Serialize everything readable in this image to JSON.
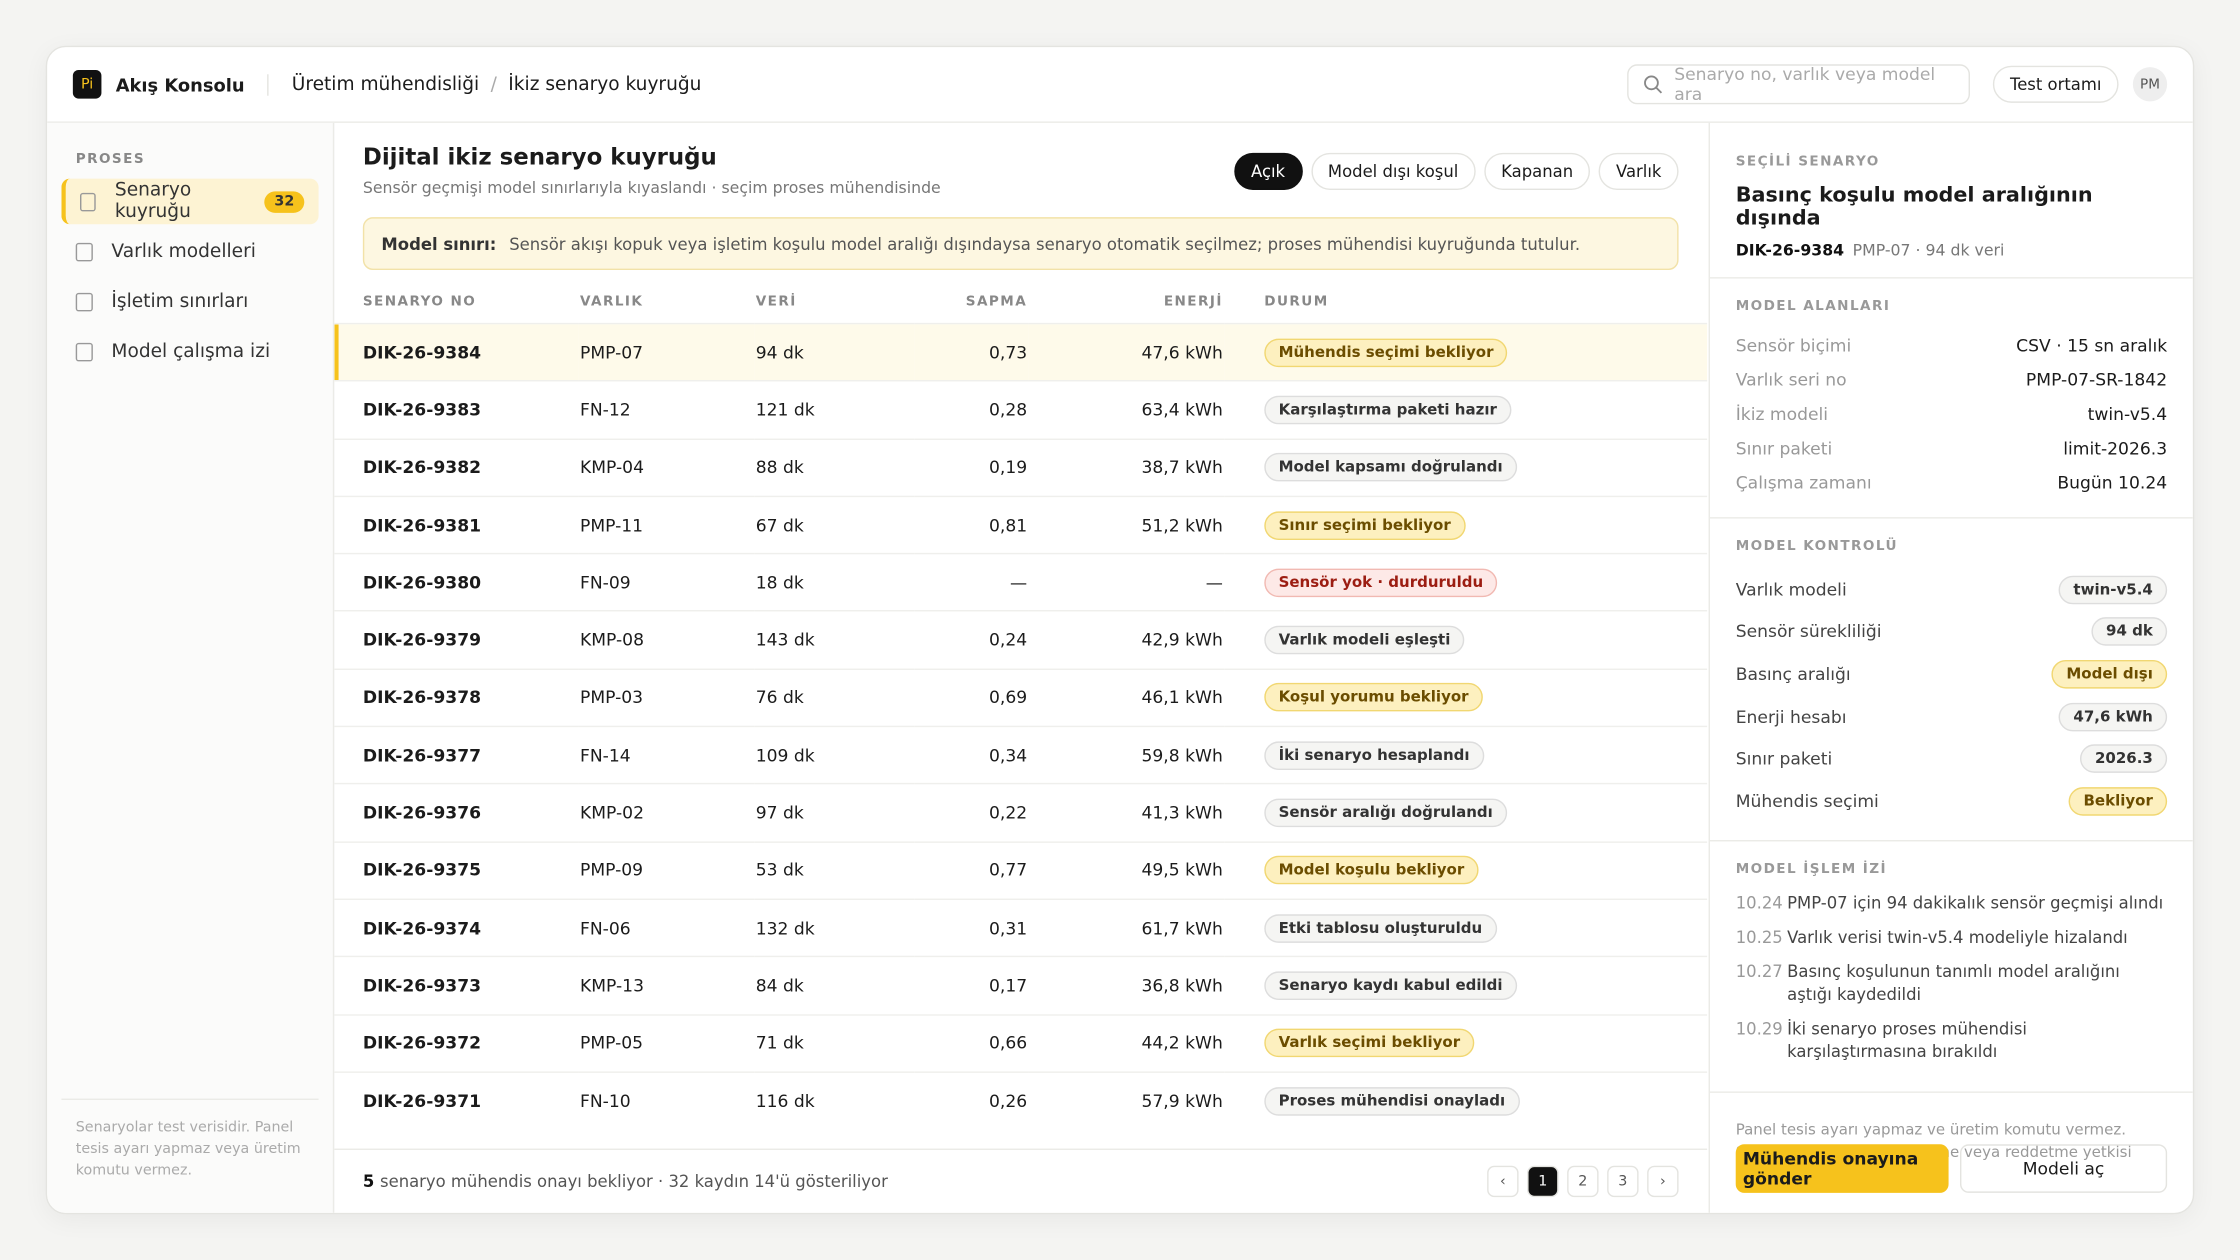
{
  "topbar": {
    "logo": "Pi",
    "app": "Akış Konsolu",
    "breadcrumb": [
      "Üretim mühendisliği",
      "İkiz senaryo kuyruğu"
    ],
    "search_placeholder": "Senaryo no, varlık veya model ara",
    "env": "Test ortamı",
    "avatar": "PM"
  },
  "sidebar": {
    "section": "PROSES",
    "items": [
      {
        "label": "Senaryo kuyruğu",
        "badge": "32"
      },
      {
        "label": "Varlık modelleri"
      },
      {
        "label": "İşletim sınırları"
      },
      {
        "label": "Model çalışma izi"
      }
    ],
    "footnote": "Senaryolar test verisidir. Panel tesis ayarı yapmaz veya üretim komutu vermez."
  },
  "main": {
    "title": "Dijital ikiz senaryo kuyruğu",
    "subtitle": "Sensör geçmişi model sınırlarıyla kıyaslandı · seçim proses mühendisinde",
    "filters": [
      "Açık",
      "Model dışı koşul",
      "Kapanan",
      "Varlık"
    ],
    "notice": {
      "label": "Model sınırı:",
      "text": "Sensör akışı kopuk veya işletim koşulu model aralığı dışındaysa senaryo otomatik seçilmez; proses mühendisi kuyruğunda tutulur."
    },
    "table": {
      "columns": [
        "SENARYO NO",
        "VARLIK",
        "VERİ",
        "SAPMA",
        "ENERJİ",
        "DURUM"
      ],
      "rows": [
        {
          "id": "DIK-26-9384",
          "asset": "PMP-07",
          "data": "94 dk",
          "dev": "0,73",
          "energy": "47,6 kWh",
          "status": "Mühendis seçimi bekliyor",
          "tone": "warn"
        },
        {
          "id": "DIK-26-9383",
          "asset": "FN-12",
          "data": "121 dk",
          "dev": "0,28",
          "energy": "63,4 kWh",
          "status": "Karşılaştırma paketi hazır",
          "tone": "neutral"
        },
        {
          "id": "DIK-26-9382",
          "asset": "KMP-04",
          "data": "88 dk",
          "dev": "0,19",
          "energy": "38,7 kWh",
          "status": "Model kapsamı doğrulandı",
          "tone": "neutral"
        },
        {
          "id": "DIK-26-9381",
          "asset": "PMP-11",
          "data": "67 dk",
          "dev": "0,81",
          "energy": "51,2 kWh",
          "status": "Sınır seçimi bekliyor",
          "tone": "warn"
        },
        {
          "id": "DIK-26-9380",
          "asset": "FN-09",
          "data": "18 dk",
          "dev": "—",
          "energy": "—",
          "status": "Sensör yok · durduruldu",
          "tone": "error"
        },
        {
          "id": "DIK-26-9379",
          "asset": "KMP-08",
          "data": "143 dk",
          "dev": "0,24",
          "energy": "42,9 kWh",
          "status": "Varlık modeli eşleşti",
          "tone": "neutral"
        },
        {
          "id": "DIK-26-9378",
          "asset": "PMP-03",
          "data": "76 dk",
          "dev": "0,69",
          "energy": "46,1 kWh",
          "status": "Koşul yorumu bekliyor",
          "tone": "warn"
        },
        {
          "id": "DIK-26-9377",
          "asset": "FN-14",
          "data": "109 dk",
          "dev": "0,34",
          "energy": "59,8 kWh",
          "status": "İki senaryo hesaplandı",
          "tone": "neutral"
        },
        {
          "id": "DIK-26-9376",
          "asset": "KMP-02",
          "data": "97 dk",
          "dev": "0,22",
          "energy": "41,3 kWh",
          "status": "Sensör aralığı doğrulandı",
          "tone": "neutral"
        },
        {
          "id": "DIK-26-9375",
          "asset": "PMP-09",
          "data": "53 dk",
          "dev": "0,77",
          "energy": "49,5 kWh",
          "status": "Model koşulu bekliyor",
          "tone": "warn"
        },
        {
          "id": "DIK-26-9374",
          "asset": "FN-06",
          "data": "132 dk",
          "dev": "0,31",
          "energy": "61,7 kWh",
          "status": "Etki tablosu oluşturuldu",
          "tone": "neutral"
        },
        {
          "id": "DIK-26-9373",
          "asset": "KMP-13",
          "data": "84 dk",
          "dev": "0,17",
          "energy": "36,8 kWh",
          "status": "Senaryo kaydı kabul edildi",
          "tone": "neutral"
        },
        {
          "id": "DIK-26-9372",
          "asset": "PMP-05",
          "data": "71 dk",
          "dev": "0,66",
          "energy": "44,2 kWh",
          "status": "Varlık seçimi bekliyor",
          "tone": "warn"
        },
        {
          "id": "DIK-26-9371",
          "asset": "FN-10",
          "data": "116 dk",
          "dev": "0,26",
          "energy": "57,9 kWh",
          "status": "Proses mühendisi onayladı",
          "tone": "neutral"
        }
      ]
    },
    "footer": {
      "count": "5",
      "text": "senaryo mühendis onayı bekliyor · 32 kaydın 14'ü gösteriliyor"
    },
    "pages": [
      "‹",
      "1",
      "2",
      "3",
      "›"
    ]
  },
  "detail": {
    "eyebrow": "SEÇİLİ SENARYO",
    "title": "Basınç koşulu model aralığının dışında",
    "id": "DIK-26-9384",
    "meta": "PMP-07 · 94 dk veri",
    "fields": {
      "heading": "MODEL ALANLARI",
      "items": [
        [
          "Sensör biçimi",
          "CSV · 15 sn aralık"
        ],
        [
          "Varlık seri no",
          "PMP-07-SR-1842"
        ],
        [
          "İkiz modeli",
          "twin-v5.4"
        ],
        [
          "Sınır paketi",
          "limit-2026.3"
        ],
        [
          "Çalışma zamanı",
          "Bugün 10.24"
        ]
      ]
    },
    "checks": {
      "heading": "MODEL KONTROLÜ",
      "items": [
        {
          "label": "Varlık modeli",
          "value": "twin-v5.4",
          "tone": "neutral"
        },
        {
          "label": "Sensör sürekliliği",
          "value": "94 dk",
          "tone": "neutral"
        },
        {
          "label": "Basınç aralığı",
          "value": "Model dışı",
          "tone": "warn"
        },
        {
          "label": "Enerji hesabı",
          "value": "47,6 kWh",
          "tone": "neutral"
        },
        {
          "label": "Sınır paketi",
          "value": "2026.3",
          "tone": "neutral"
        },
        {
          "label": "Mühendis seçimi",
          "value": "Bekliyor",
          "tone": "warn"
        }
      ]
    },
    "log": {
      "heading": "MODEL İŞLEM İZİ",
      "items": [
        {
          "time": "10.24",
          "text": "PMP-07 için 94 dakikalık sensör geçmişi alındı"
        },
        {
          "time": "10.25",
          "text": "Varlık verisi twin-v5.4 modeliyle hizalandı"
        },
        {
          "time": "10.27",
          "text": "Basınç koşulunun tanımlı model aralığını aştığı kaydedildi"
        },
        {
          "time": "10.29",
          "text": "İki senaryo proses mühendisi karşılaştırmasına bırakıldı"
        }
      ]
    },
    "disclaimer": "Panel tesis ayarı yapmaz ve üretim komutu vermez. Senaryoyu seçme, değiştirme veya reddetme yetkisi proses mühendisindedir.",
    "actions": [
      "Mühendis onayına gönder",
      "Modeli aç"
    ]
  }
}
